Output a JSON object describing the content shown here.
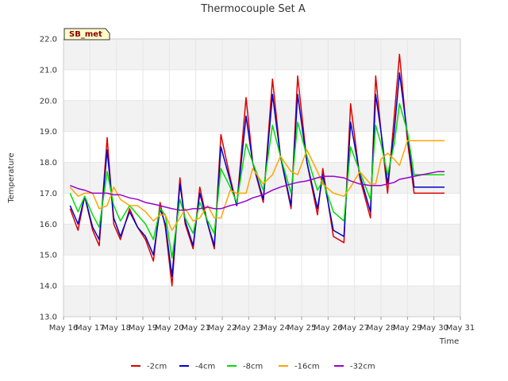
{
  "chart_data": {
    "type": "line",
    "title": "Thermocouple Set A",
    "xlabel": "Time",
    "ylabel": "Temperature",
    "badge": "SB_met",
    "x_ticks": [
      "May 16",
      "May 17",
      "May 18",
      "May 19",
      "May 20",
      "May 21",
      "May 22",
      "May 23",
      "May 24",
      "May 25",
      "May 26",
      "May 27",
      "May 28",
      "May 29",
      "May 30",
      "May 31"
    ],
    "x_range": [
      16,
      31
    ],
    "y_ticks": [
      "13.0",
      "14.0",
      "15.0",
      "16.0",
      "17.0",
      "18.0",
      "19.0",
      "20.0",
      "21.0",
      "22.0"
    ],
    "ylim": [
      13.0,
      22.0
    ],
    "grid": true,
    "legend_position": "bottom",
    "colors": {
      "-2cm": "#dd0000",
      "-4cm": "#0000cc",
      "-8cm": "#00dd00",
      "-16cm": "#ffa500",
      "-32cm": "#9900cc",
      "band": "#f2f2f2",
      "badge_fill": "#ffffcc"
    },
    "x": [
      16.25,
      16.55,
      16.8,
      17.1,
      17.35,
      17.65,
      17.9,
      18.15,
      18.5,
      18.8,
      19.1,
      19.4,
      19.65,
      19.85,
      20.1,
      20.4,
      20.6,
      20.9,
      21.15,
      21.45,
      21.7,
      21.95,
      22.3,
      22.55,
      22.9,
      23.15,
      23.55,
      23.9,
      24.2,
      24.6,
      24.85,
      25.2,
      25.6,
      25.8,
      26.2,
      26.6,
      26.85,
      27.2,
      27.6,
      27.8,
      28.0,
      28.25,
      28.5,
      28.7,
      29.0,
      29.25,
      29.55,
      29.85,
      30.15,
      30.4
    ],
    "series": [
      {
        "name": "-2cm",
        "values": [
          16.5,
          15.8,
          16.9,
          15.8,
          15.3,
          18.8,
          16.0,
          15.5,
          16.5,
          15.9,
          15.5,
          14.8,
          16.7,
          15.9,
          14.0,
          17.5,
          16.0,
          15.2,
          17.2,
          16.0,
          15.2,
          18.9,
          17.5,
          16.6,
          20.1,
          18.0,
          16.7,
          20.7,
          18.2,
          16.5,
          20.8,
          18.0,
          16.3,
          17.8,
          15.6,
          15.4,
          19.9,
          17.5,
          16.2,
          20.8,
          19.0,
          17.0,
          19.5,
          21.5,
          18.7,
          17.0,
          17.0,
          17.0,
          17.0,
          17.0
        ]
      },
      {
        "name": "-4cm",
        "values": [
          16.6,
          16.0,
          16.9,
          15.9,
          15.5,
          18.4,
          16.2,
          15.6,
          16.4,
          15.9,
          15.6,
          15.0,
          16.5,
          16.0,
          14.3,
          17.3,
          16.1,
          15.3,
          17.0,
          16.0,
          15.3,
          18.5,
          17.4,
          16.6,
          19.5,
          18.0,
          16.8,
          20.2,
          18.2,
          16.6,
          20.2,
          18.0,
          16.5,
          17.6,
          15.8,
          15.6,
          19.3,
          17.6,
          16.4,
          20.2,
          19.0,
          17.3,
          19.0,
          20.9,
          18.9,
          17.2,
          17.2,
          17.2,
          17.2,
          17.2
        ]
      },
      {
        "name": "-8cm",
        "values": [
          17.0,
          16.4,
          16.9,
          16.3,
          15.9,
          17.7,
          16.6,
          16.1,
          16.6,
          16.3,
          16.0,
          15.5,
          16.5,
          16.3,
          14.9,
          16.8,
          16.2,
          15.7,
          16.7,
          16.1,
          15.7,
          17.8,
          17.2,
          16.7,
          18.6,
          18.0,
          17.1,
          19.2,
          18.2,
          17.0,
          19.3,
          18.2,
          17.1,
          17.4,
          16.4,
          16.1,
          18.5,
          17.7,
          16.8,
          19.2,
          18.6,
          17.6,
          18.6,
          19.9,
          19.0,
          17.6,
          17.6,
          17.6,
          17.6,
          17.6
        ]
      },
      {
        "name": "-16cm",
        "values": [
          17.2,
          16.9,
          17.0,
          17.0,
          16.5,
          16.6,
          17.2,
          16.8,
          16.6,
          16.6,
          16.4,
          16.1,
          16.3,
          16.3,
          15.8,
          16.2,
          16.5,
          16.1,
          16.2,
          16.6,
          16.2,
          16.2,
          17.1,
          17.0,
          17.0,
          17.8,
          17.3,
          17.6,
          18.2,
          17.7,
          17.6,
          18.4,
          17.7,
          17.3,
          17.0,
          16.9,
          17.2,
          17.7,
          17.3,
          17.3,
          18.1,
          18.3,
          18.1,
          17.9,
          18.7,
          18.7,
          18.7,
          18.7,
          18.7,
          18.7
        ]
      },
      {
        "name": "-32cm",
        "values": [
          17.25,
          17.15,
          17.1,
          17.0,
          17.0,
          17.0,
          16.95,
          16.95,
          16.85,
          16.8,
          16.7,
          16.65,
          16.6,
          16.55,
          16.5,
          16.45,
          16.45,
          16.5,
          16.5,
          16.55,
          16.5,
          16.5,
          16.6,
          16.65,
          16.75,
          16.85,
          16.95,
          17.1,
          17.2,
          17.3,
          17.35,
          17.4,
          17.5,
          17.55,
          17.55,
          17.5,
          17.4,
          17.3,
          17.25,
          17.25,
          17.25,
          17.3,
          17.35,
          17.45,
          17.5,
          17.55,
          17.6,
          17.65,
          17.7,
          17.7
        ]
      }
    ]
  }
}
